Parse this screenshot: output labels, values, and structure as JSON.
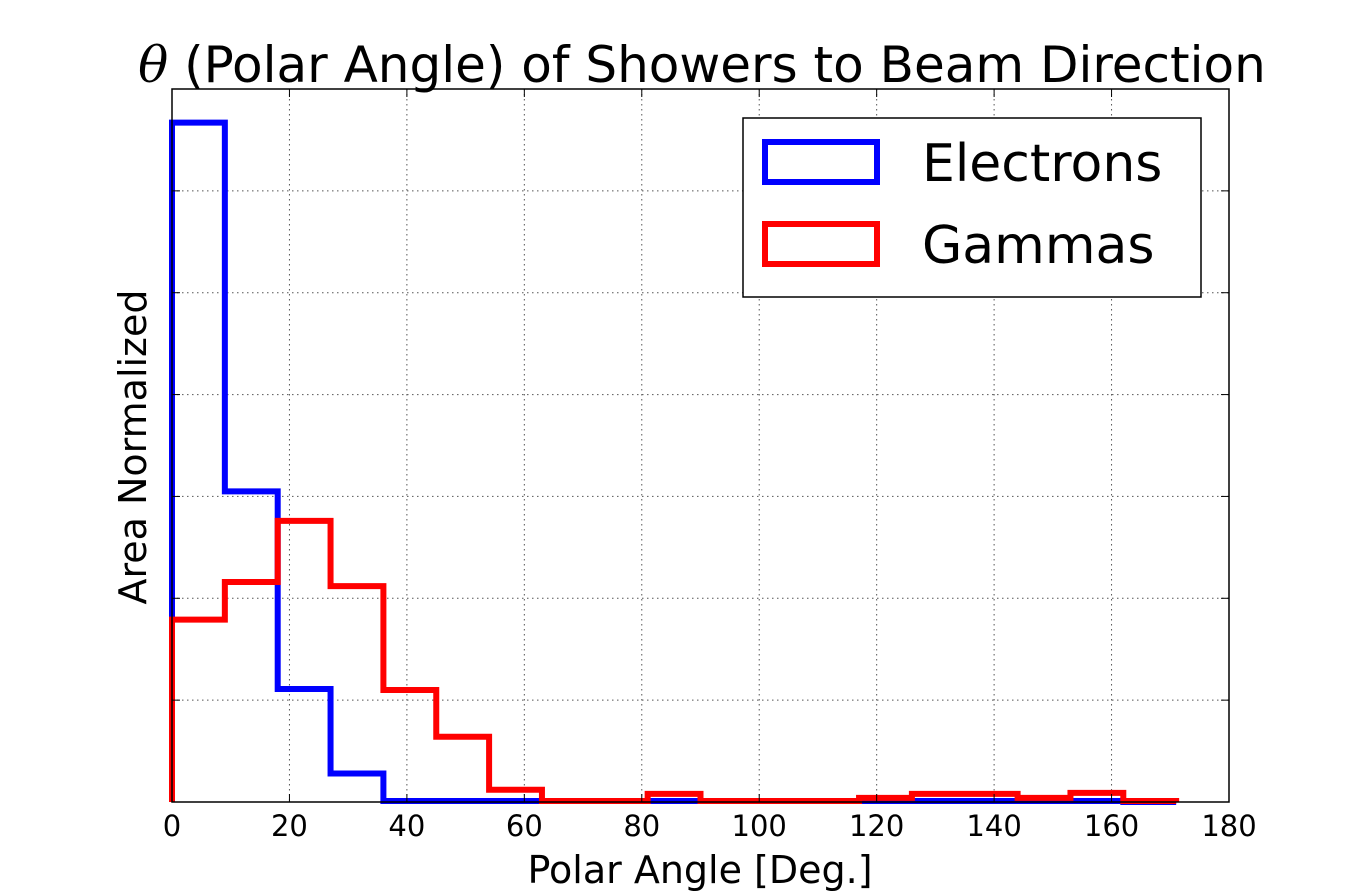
{
  "chart_data": {
    "type": "histogram",
    "title": {
      "symbol": "θ",
      "text": " (Polar Angle) of Showers to Beam Direction"
    },
    "xlabel": "Polar Angle [Deg.]",
    "ylabel": "Area Normalized",
    "xlim": [
      0,
      180
    ],
    "ylim": [
      0,
      0.07
    ],
    "x_ticks": [
      0,
      20,
      40,
      60,
      80,
      100,
      120,
      140,
      160,
      180
    ],
    "y_ticks": [
      0,
      0.01,
      0.02,
      0.03,
      0.04,
      0.05,
      0.06,
      0.07
    ],
    "y_tick_labels_shown": false,
    "grid": true,
    "legend_position": "top-right",
    "bin_edges": [
      0,
      9,
      18,
      27,
      36,
      45,
      54,
      63,
      72,
      81,
      90,
      99,
      108,
      117,
      126,
      135,
      144,
      153,
      162,
      171
    ],
    "series": [
      {
        "name": "Electrons",
        "color": "#0000ff",
        "values": [
          0.0667,
          0.0305,
          0.0111,
          0.0028,
          0.0001,
          0.0001,
          0.0001,
          0.0001,
          0.0001,
          0.0001,
          0.0001,
          0.0001,
          0.0001,
          0.0001,
          0.0001,
          0.0001,
          0.0001,
          0.0001,
          0.0
        ]
      },
      {
        "name": "Gammas",
        "color": "#ff0000",
        "values": [
          0.0179,
          0.0216,
          0.0276,
          0.0212,
          0.011,
          0.0064,
          0.0012,
          0.0001,
          0.0001,
          0.0008,
          0.0001,
          0.0001,
          0.0001,
          0.0004,
          0.0008,
          0.0008,
          0.0004,
          0.0009,
          0.0001
        ]
      }
    ]
  }
}
